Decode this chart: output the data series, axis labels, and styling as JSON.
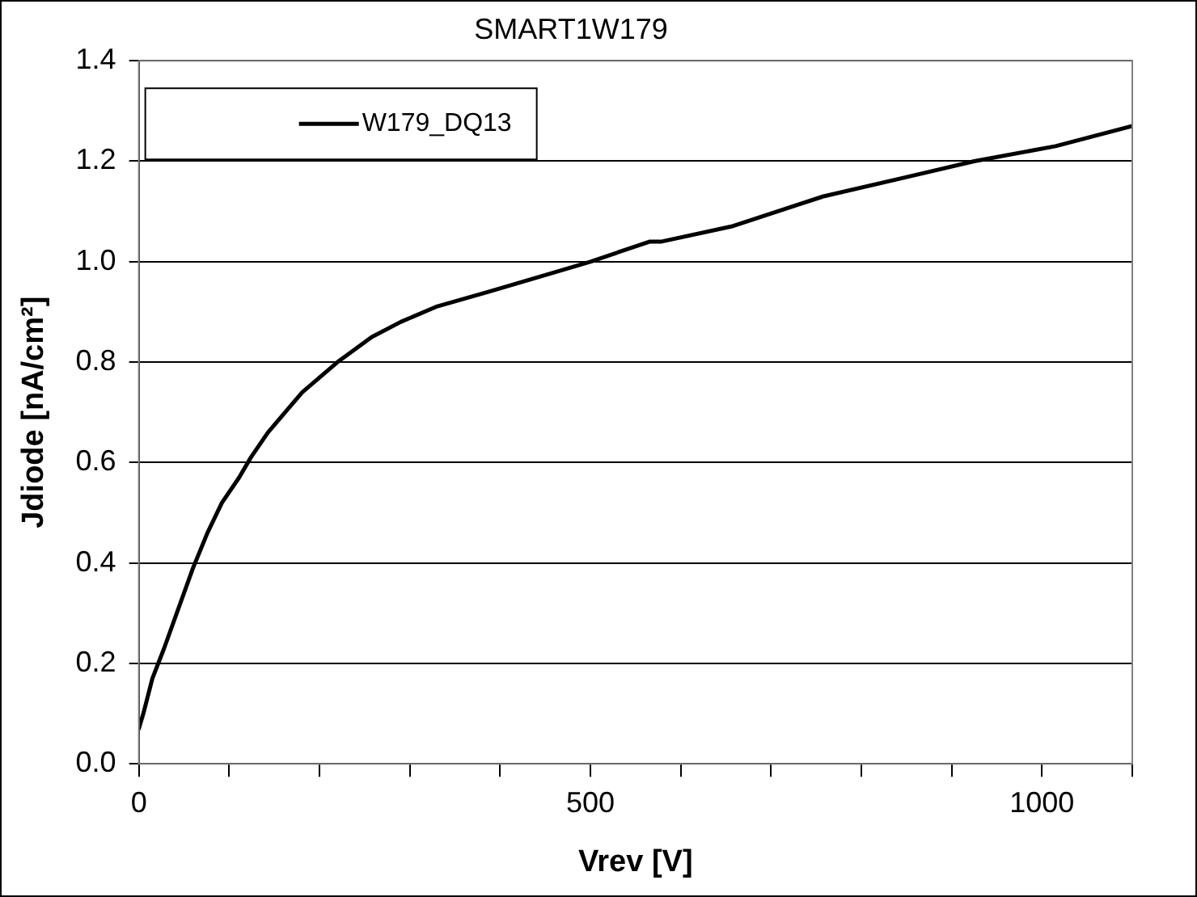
{
  "chart_data": {
    "type": "line",
    "title": "SMART1W179",
    "xlabel": "Vrev [V]",
    "ylabel": "Jdiode [nA/cm²]",
    "xlim": [
      0,
      1100
    ],
    "xticks": [
      0,
      {
        "value": 100,
        "label": null
      },
      {
        "value": 200,
        "label": null
      },
      {
        "value": 300,
        "label": null
      },
      {
        "value": 400,
        "label": null
      },
      500,
      {
        "value": 600,
        "label": null
      },
      {
        "value": 700,
        "label": null
      },
      {
        "value": 800,
        "label": null
      },
      {
        "value": 900,
        "label": null
      },
      1000,
      {
        "value": 1100,
        "label": null
      }
    ],
    "ylim": [
      0,
      1.4
    ],
    "yticks": [
      {
        "value": 0,
        "label": "0.0"
      },
      {
        "value": 0.2,
        "label": "0.2"
      },
      {
        "value": 0.4,
        "label": "0.4"
      },
      {
        "value": 0.6,
        "label": "0.6"
      },
      {
        "value": 0.8,
        "label": "0.8"
      },
      {
        "value": 1,
        "label": "1.0"
      },
      {
        "value": 1.2,
        "label": "1.2"
      },
      {
        "value": 1.4,
        "label": "1.4"
      }
    ],
    "grid": "y",
    "legend": "top left",
    "marker": "none",
    "line_style": "solid",
    "series": [
      {
        "name": "W179_DQ13",
        "color": "#000000",
        "x": [
          0,
          5,
          15,
          28,
          60,
          76,
          92,
          111,
          124,
          143,
          181,
          220,
          258,
          290,
          329,
          387,
          444,
          500,
          566,
          579,
          656,
          758,
          854,
          925,
          1015,
          1100
        ],
        "values": [
          0.07,
          0.1,
          0.17,
          0.23,
          0.39,
          0.46,
          0.52,
          0.57,
          0.61,
          0.66,
          0.74,
          0.8,
          0.85,
          0.88,
          0.91,
          0.94,
          0.97,
          1.0,
          1.04,
          1.04,
          1.07,
          1.13,
          1.17,
          1.2,
          1.23,
          1.27
        ]
      }
    ]
  }
}
